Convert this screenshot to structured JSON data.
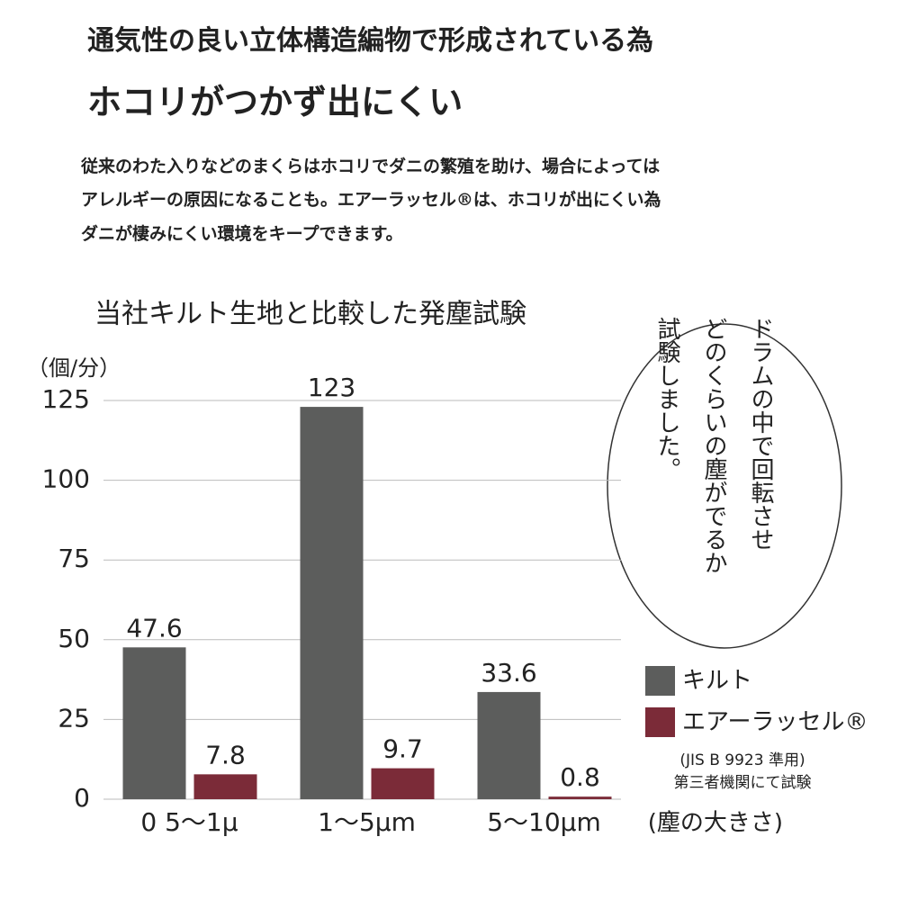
{
  "header": {
    "line1": "通気性の良い立体構造編物で形成されている為",
    "line2": "ホコリがつかず出にくい",
    "body": [
      "従来のわた入りなどのまくらはホコリでダニの繁殖を助け、場合によっては",
      "アレルギーの原因になることも。エアーラッセル®は、ホコリが出にくい為",
      "ダニが棲みにくい環境をキープできます。"
    ]
  },
  "chart_data": {
    "type": "bar",
    "title": "当社キルト生地と比較した発塵試験",
    "y_label": "（個/分）",
    "x_label": "(塵の大きさ)",
    "categories": [
      "0 5～1μ",
      "1～5μm",
      "5～10μm"
    ],
    "series": [
      {
        "name": "キルト",
        "color": "#5c5d5c",
        "values": [
          47.6,
          123,
          33.6
        ]
      },
      {
        "name": "エアーラッセル®",
        "color": "#7b2b38",
        "values": [
          7.8,
          9.7,
          0.8
        ]
      }
    ],
    "ylim": [
      0,
      125
    ],
    "yticks": [
      0,
      25,
      50,
      75,
      100,
      125
    ],
    "grid": true,
    "notes": [
      "(JIS B 9923 準用)",
      "第三者機関にて試験"
    ],
    "callout": [
      "ドラムの中で回転させ",
      "どのくらいの塵がでるか",
      "試験しました。"
    ]
  }
}
